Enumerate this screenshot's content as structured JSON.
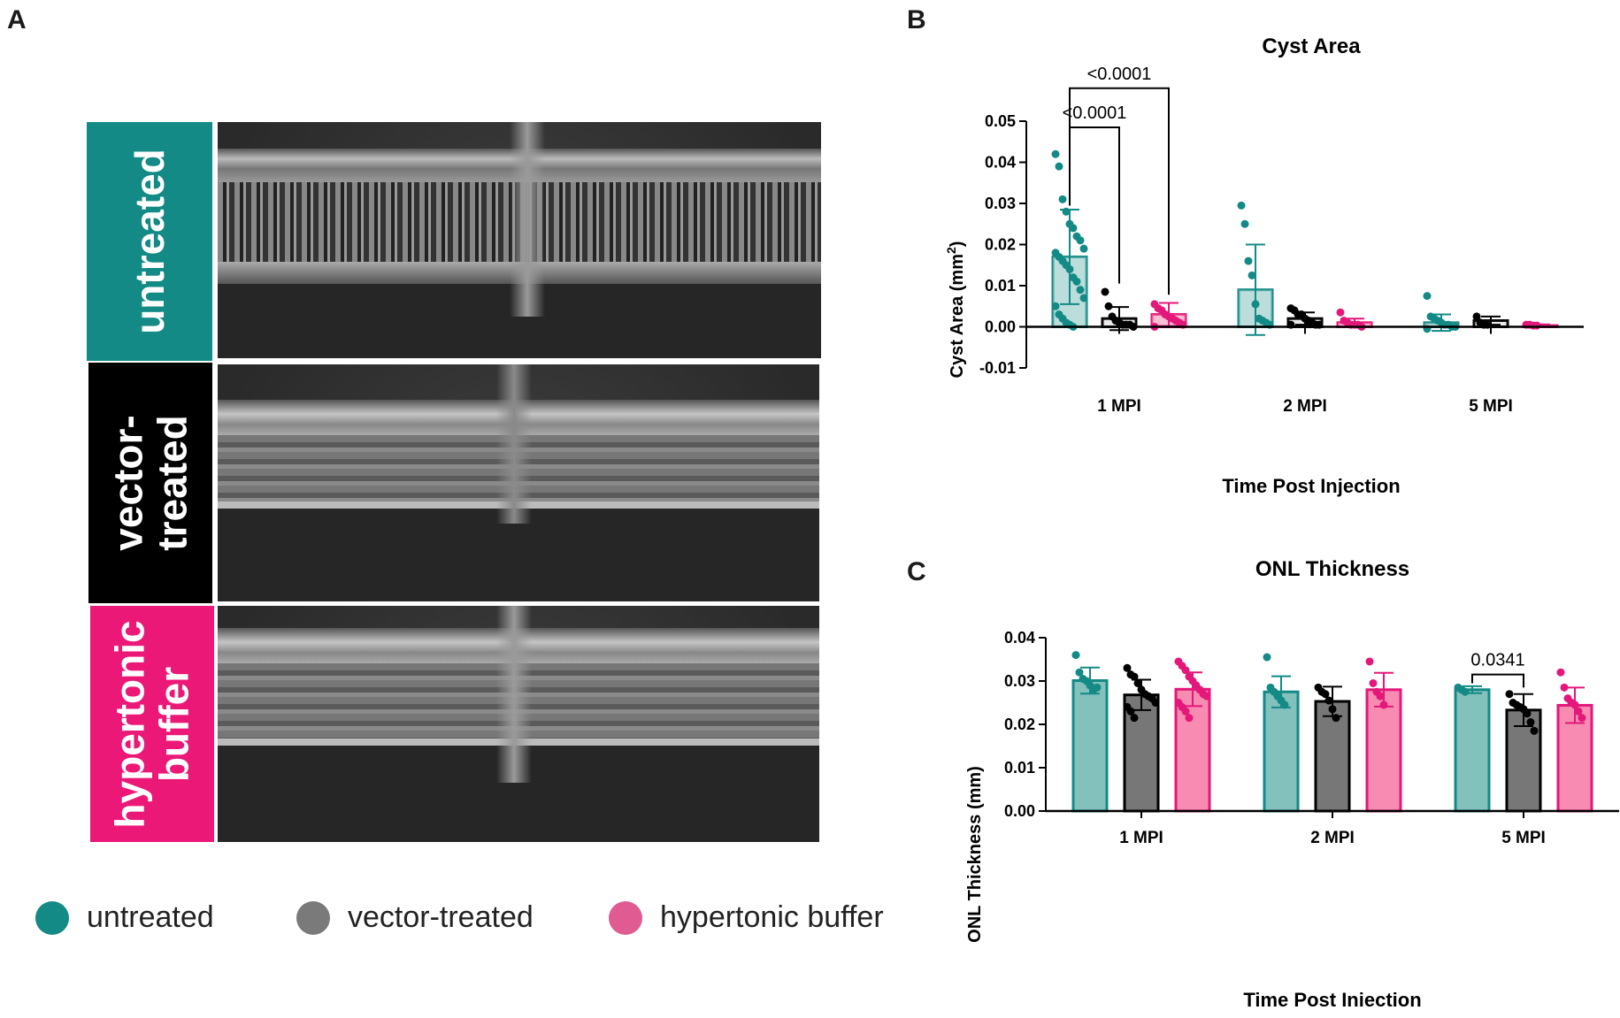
{
  "panels": {
    "a": "A",
    "b": "B",
    "c": "C"
  },
  "rows": [
    {
      "label": "untreated",
      "color": "#138a85"
    },
    {
      "label": "vector-\ntreated",
      "color": "#000000"
    },
    {
      "label": "hypertonic\nbuffer",
      "color": "#ec1877"
    }
  ],
  "legend": [
    {
      "label": "untreated",
      "color": "#138a85"
    },
    {
      "label": "vector-treated",
      "color": "#7a7a7a"
    },
    {
      "label": "hypertonic buffer",
      "color": "#e05b91"
    }
  ],
  "chart_data": [
    {
      "type": "bar",
      "title": "Cyst Area",
      "xlabel": "Time Post Injection",
      "ylabel": "Cyst Area (mm²)",
      "ylim": [
        -0.01,
        0.05
      ],
      "yticks": [
        "-0.01",
        "0.00",
        "0.01",
        "0.02",
        "0.03",
        "0.04",
        "0.05"
      ],
      "categories": [
        "1 MPI",
        "2 MPI",
        "5 MPI"
      ],
      "series": [
        {
          "name": "untreated",
          "values": [
            0.017,
            0.009,
            0.001
          ],
          "err": [
            0.0115,
            0.011,
            0.002
          ],
          "points": [
            [
              0.042,
              0.039,
              0.031,
              0.028,
              0.025,
              0.024,
              0.022,
              0.021,
              0.019,
              0.018,
              0.017,
              0.016,
              0.015,
              0.014,
              0.012,
              0.011,
              0.009,
              0.007,
              0.005,
              0.003,
              0.002,
              0.001,
              0.0005,
              0.0
            ],
            [
              0.0295,
              0.025,
              0.016,
              0.0125,
              0.0055,
              0.002,
              0.0015,
              0.001,
              0.0005
            ],
            [
              0.0075,
              0.0025,
              0.002,
              0.0015,
              0.001,
              0.0005,
              0.0005,
              0.0,
              0.0,
              -0.0005
            ]
          ]
        },
        {
          "name": "vector-treated",
          "values": [
            0.002,
            0.002,
            0.0015
          ],
          "err": [
            0.0028,
            0.0015,
            0.001
          ],
          "points": [
            [
              0.0085,
              0.005,
              0.0025,
              0.0015,
              0.001,
              0.0005,
              0.0005,
              0.0005,
              0.0
            ],
            [
              0.0045,
              0.004,
              0.003,
              0.003,
              0.002,
              0.0015,
              0.001,
              0.0005,
              0.0005,
              0.0005
            ],
            [
              0.0025,
              0.001,
              0.0005,
              0.0005
            ]
          ]
        },
        {
          "name": "hypertonic buffer",
          "values": [
            0.003,
            0.001,
            0.0003
          ],
          "err": [
            0.0028,
            0.001,
            0.0003
          ],
          "points": [
            [
              0.0055,
              0.0045,
              0.004,
              0.003,
              0.0025,
              0.002,
              0.0015,
              0.001,
              0.0005,
              0.0
            ],
            [
              0.0035,
              0.0015,
              0.001,
              0.0005,
              0.0005,
              0.0005,
              0.0
            ],
            [
              0.0005,
              0.0005,
              0.0003,
              0.0003
            ]
          ]
        }
      ],
      "brackets": [
        {
          "from": [
            0,
            0
          ],
          "to": [
            0,
            1
          ],
          "y": 0.0485,
          "label": "<0.0001"
        },
        {
          "from": [
            0,
            0
          ],
          "to": [
            0,
            2
          ],
          "y": 0.058,
          "label": "<0.0001"
        }
      ]
    },
    {
      "type": "bar",
      "title": "ONL Thickness",
      "xlabel": "Time Post Injection",
      "ylabel": "ONL Thickness (mm)",
      "ylim": [
        0,
        0.04
      ],
      "yticks": [
        "0.00",
        "0.01",
        "0.02",
        "0.03",
        "0.04"
      ],
      "categories": [
        "1 MPI",
        "2 MPI",
        "5 MPI"
      ],
      "series": [
        {
          "name": "untreated",
          "values": [
            0.0301,
            0.0275,
            0.028
          ],
          "err": [
            0.003,
            0.0036,
            0.0008
          ],
          "points": [
            [
              0.036,
              0.032,
              0.0305,
              0.03,
              0.029,
              0.028,
              0.0285
            ],
            [
              0.0355,
              0.0285,
              0.0275,
              0.0265,
              0.0255,
              0.0245
            ],
            [
              0.0285,
              0.028,
              0.0275
            ]
          ]
        },
        {
          "name": "vector-treated",
          "values": [
            0.0268,
            0.0253,
            0.0233
          ],
          "err": [
            0.0035,
            0.0034,
            0.0037
          ],
          "points": [
            [
              0.033,
              0.0315,
              0.031,
              0.0295,
              0.028,
              0.027,
              0.0265,
              0.026,
              0.025,
              0.024,
              0.023,
              0.0215
            ],
            [
              0.0285,
              0.0275,
              0.027,
              0.0255,
              0.0235,
              0.0215
            ],
            [
              0.027,
              0.025,
              0.0245,
              0.024,
              0.0235,
              0.0225,
              0.0205,
              0.0185
            ]
          ]
        },
        {
          "name": "hypertonic buffer",
          "values": [
            0.0281,
            0.028,
            0.0244
          ],
          "err": [
            0.0039,
            0.0039,
            0.0041
          ],
          "points": [
            [
              0.0345,
              0.0335,
              0.0325,
              0.031,
              0.03,
              0.029,
              0.028,
              0.027,
              0.0265,
              0.025,
              0.024,
              0.023,
              0.0215
            ],
            [
              0.0345,
              0.0295,
              0.0275,
              0.0265,
              0.0245
            ],
            [
              0.032,
              0.0285,
              0.026,
              0.025,
              0.0245,
              0.023,
              0.0215
            ]
          ]
        }
      ],
      "brackets": [
        {
          "from": [
            2,
            0
          ],
          "to": [
            2,
            1
          ],
          "y": 0.0315,
          "label": "0.0341"
        }
      ]
    }
  ]
}
